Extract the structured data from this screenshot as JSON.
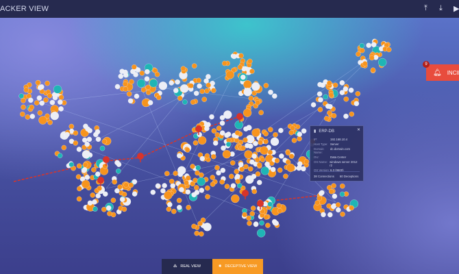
{
  "header": {
    "title": "ACKER VIEW",
    "icons": [
      "upload-icon",
      "download-icon",
      "play-icon"
    ]
  },
  "tooltip": {
    "title": "ERP-DB",
    "icon": "server-icon",
    "fields": [
      {
        "key": "IP:",
        "value": "192.168.10.4"
      },
      {
        "key": "Host Type:",
        "value": "Server"
      },
      {
        "key": "Domain Name:",
        "value": "dc.domain.com"
      },
      {
        "key": "OU:",
        "value": "Data Center"
      },
      {
        "key": "OS Name:",
        "value": "windows server 2012 r2"
      },
      {
        "key": "OS Version:",
        "value": "6.3 (9600)"
      }
    ],
    "connections": "38 Connections",
    "deceptions": "60 Deceptions"
  },
  "incidents": {
    "count": "9",
    "label": "INCIDENTS",
    "icon": "alarm-bell-icon"
  },
  "views": {
    "real": "REAL VIEW",
    "deceptive": "DECEPTIVE VIEW",
    "active": "deceptive"
  },
  "colors": {
    "deception_node": "#f7941d",
    "real_node": "#eceef6",
    "server_node": "#1fb5b5",
    "attack": "#d8342a",
    "incident": "#e84c3d"
  }
}
